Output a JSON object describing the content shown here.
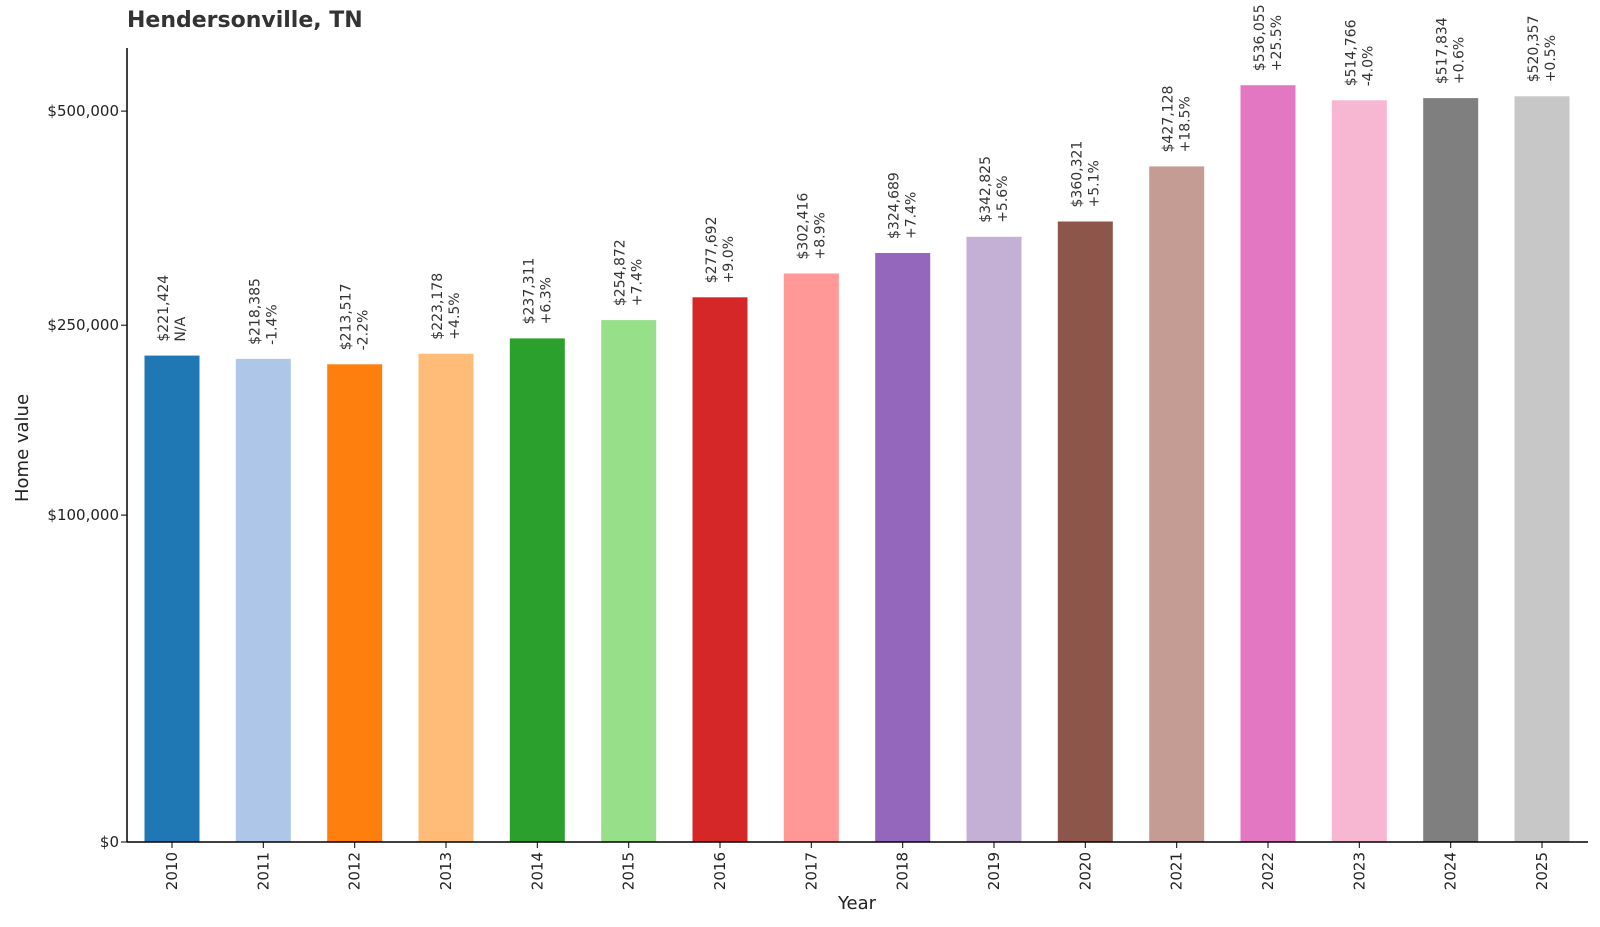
{
  "chart_data": {
    "type": "bar",
    "title": "Hendersonville, TN",
    "xlabel": "Year",
    "ylabel": "Home value",
    "yscale": "sqrt",
    "ylim": [
      0,
      590000
    ],
    "yticks": [
      0,
      100000,
      250000,
      500000
    ],
    "ytick_labels": [
      "$0",
      "$100,000",
      "$250,000",
      "$500,000"
    ],
    "grid": false,
    "categories": [
      "2010",
      "2011",
      "2012",
      "2013",
      "2014",
      "2015",
      "2016",
      "2017",
      "2018",
      "2019",
      "2020",
      "2021",
      "2022",
      "2023",
      "2024",
      "2025"
    ],
    "values": [
      221424,
      218385,
      213517,
      223178,
      237311,
      254872,
      277692,
      302416,
      324689,
      342825,
      360321,
      427128,
      536055,
      514766,
      517834,
      520357
    ],
    "value_labels": [
      "$221,424",
      "$218,385",
      "$213,517",
      "$223,178",
      "$237,311",
      "$254,872",
      "$277,692",
      "$302,416",
      "$324,689",
      "$342,825",
      "$360,321",
      "$427,128",
      "$536,055",
      "$514,766",
      "$517,834",
      "$520,357"
    ],
    "change_labels": [
      "N/A",
      "-1.4%",
      "-2.2%",
      "+4.5%",
      "+6.3%",
      "+7.4%",
      "+9.0%",
      "+8.9%",
      "+7.4%",
      "+5.6%",
      "+5.1%",
      "+18.5%",
      "+25.5%",
      "-4.0%",
      "+0.6%",
      "+0.5%"
    ],
    "colors": [
      "#1f77b4",
      "#aec7e8",
      "#ff7f0e",
      "#ffbb78",
      "#2ca02c",
      "#98df8a",
      "#d62728",
      "#ff9896",
      "#9467bd",
      "#c5b0d5",
      "#8c564b",
      "#c49c94",
      "#e377c2",
      "#f7b6d2",
      "#7f7f7f",
      "#c7c7c7"
    ]
  }
}
